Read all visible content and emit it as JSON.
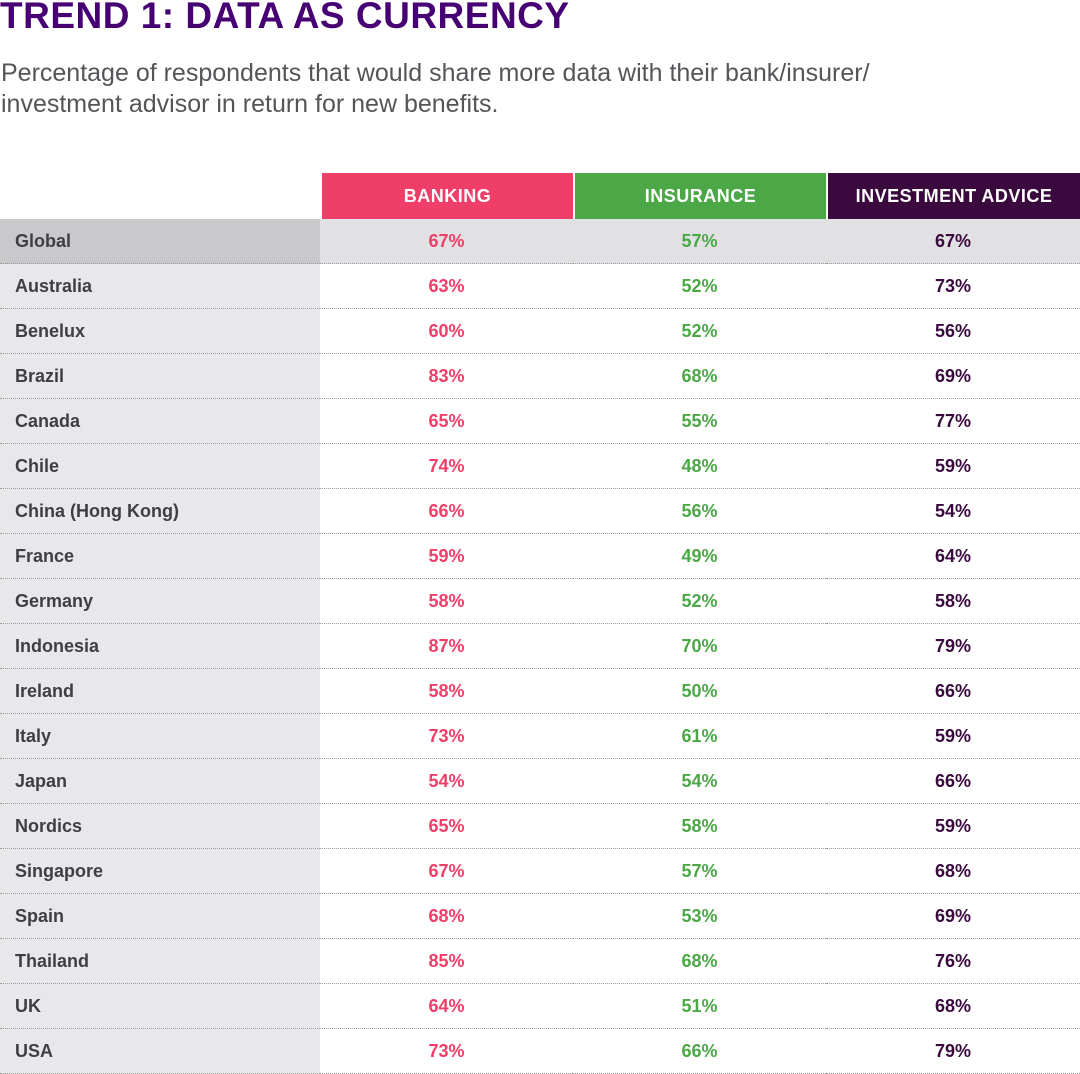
{
  "title": "TREND 1: DATA AS CURRENCY",
  "subtitle_line1": "Percentage of respondents that would share more data with their bank/insurer/",
  "subtitle_line2": "investment advisor in return for new benefits.",
  "colors": {
    "banking": "#ef3e67",
    "insurance": "#4ca846",
    "investment": "#3a0a3e"
  },
  "chart_data": {
    "type": "table",
    "columns": [
      "BANKING",
      "INSURANCE",
      "INVESTMENT ADVICE"
    ],
    "rows": [
      {
        "country": "Global",
        "values": [
          "67%",
          "57%",
          "67%"
        ]
      },
      {
        "country": "Australia",
        "values": [
          "63%",
          "52%",
          "73%"
        ]
      },
      {
        "country": "Benelux",
        "values": [
          "60%",
          "52%",
          "56%"
        ]
      },
      {
        "country": "Brazil",
        "values": [
          "83%",
          "68%",
          "69%"
        ]
      },
      {
        "country": "Canada",
        "values": [
          "65%",
          "55%",
          "77%"
        ]
      },
      {
        "country": "Chile",
        "values": [
          "74%",
          "48%",
          "59%"
        ]
      },
      {
        "country": "China (Hong Kong)",
        "values": [
          "66%",
          "56%",
          "54%"
        ]
      },
      {
        "country": "France",
        "values": [
          "59%",
          "49%",
          "64%"
        ]
      },
      {
        "country": "Germany",
        "values": [
          "58%",
          "52%",
          "58%"
        ]
      },
      {
        "country": "Indonesia",
        "values": [
          "87%",
          "70%",
          "79%"
        ]
      },
      {
        "country": "Ireland",
        "values": [
          "58%",
          "50%",
          "66%"
        ]
      },
      {
        "country": "Italy",
        "values": [
          "73%",
          "61%",
          "59%"
        ]
      },
      {
        "country": "Japan",
        "values": [
          "54%",
          "54%",
          "66%"
        ]
      },
      {
        "country": "Nordics",
        "values": [
          "65%",
          "58%",
          "59%"
        ]
      },
      {
        "country": "Singapore",
        "values": [
          "67%",
          "57%",
          "68%"
        ]
      },
      {
        "country": "Spain",
        "values": [
          "68%",
          "53%",
          "69%"
        ]
      },
      {
        "country": "Thailand",
        "values": [
          "85%",
          "68%",
          "76%"
        ]
      },
      {
        "country": "UK",
        "values": [
          "64%",
          "51%",
          "68%"
        ]
      },
      {
        "country": "USA",
        "values": [
          "73%",
          "66%",
          "79%"
        ]
      }
    ]
  }
}
